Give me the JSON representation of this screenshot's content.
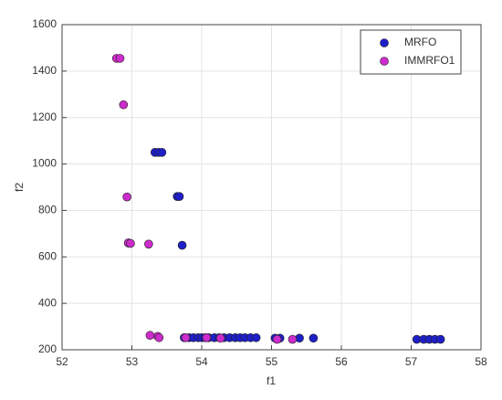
{
  "chart_data": {
    "type": "scatter",
    "x_label": "f1",
    "y_label": "f2",
    "xlim": [
      52,
      58
    ],
    "xticks": [
      52,
      53,
      54,
      55,
      56,
      57,
      58
    ],
    "ylim": [
      200,
      1600
    ],
    "yticks": [
      200,
      400,
      600,
      800,
      1000,
      1200,
      1400,
      1600
    ],
    "grid": true,
    "legend_position": "top-right",
    "series": [
      {
        "name": "MRFO",
        "color": "#1f1fc8",
        "x": [
          53.33,
          53.38,
          53.43,
          53.65,
          53.68,
          53.72,
          52.95,
          53.75,
          53.82,
          53.88,
          53.95,
          54.0,
          54.05,
          54.1,
          54.18,
          54.25,
          54.32,
          54.4,
          54.48,
          54.55,
          54.62,
          54.7,
          54.78,
          55.05,
          55.12,
          55.4,
          55.6,
          57.08,
          57.18,
          57.26,
          57.34,
          57.42
        ],
        "y": [
          1050,
          1050,
          1050,
          860,
          860,
          650,
          660,
          252,
          252,
          252,
          252,
          252,
          252,
          252,
          252,
          252,
          252,
          252,
          252,
          252,
          252,
          252,
          252,
          250,
          250,
          250,
          250,
          245,
          245,
          245,
          245,
          245
        ]
      },
      {
        "name": "IMMRFO1",
        "color": "#cc2ccc",
        "x": [
          52.78,
          52.83,
          52.88,
          52.93,
          52.95,
          52.98,
          53.24,
          53.26,
          53.37,
          53.39,
          53.77,
          54.07,
          54.27,
          55.08,
          55.3
        ],
        "y": [
          1455,
          1455,
          1255,
          858,
          660,
          658,
          655,
          262,
          258,
          252,
          252,
          252,
          250,
          245,
          245
        ]
      }
    ]
  }
}
